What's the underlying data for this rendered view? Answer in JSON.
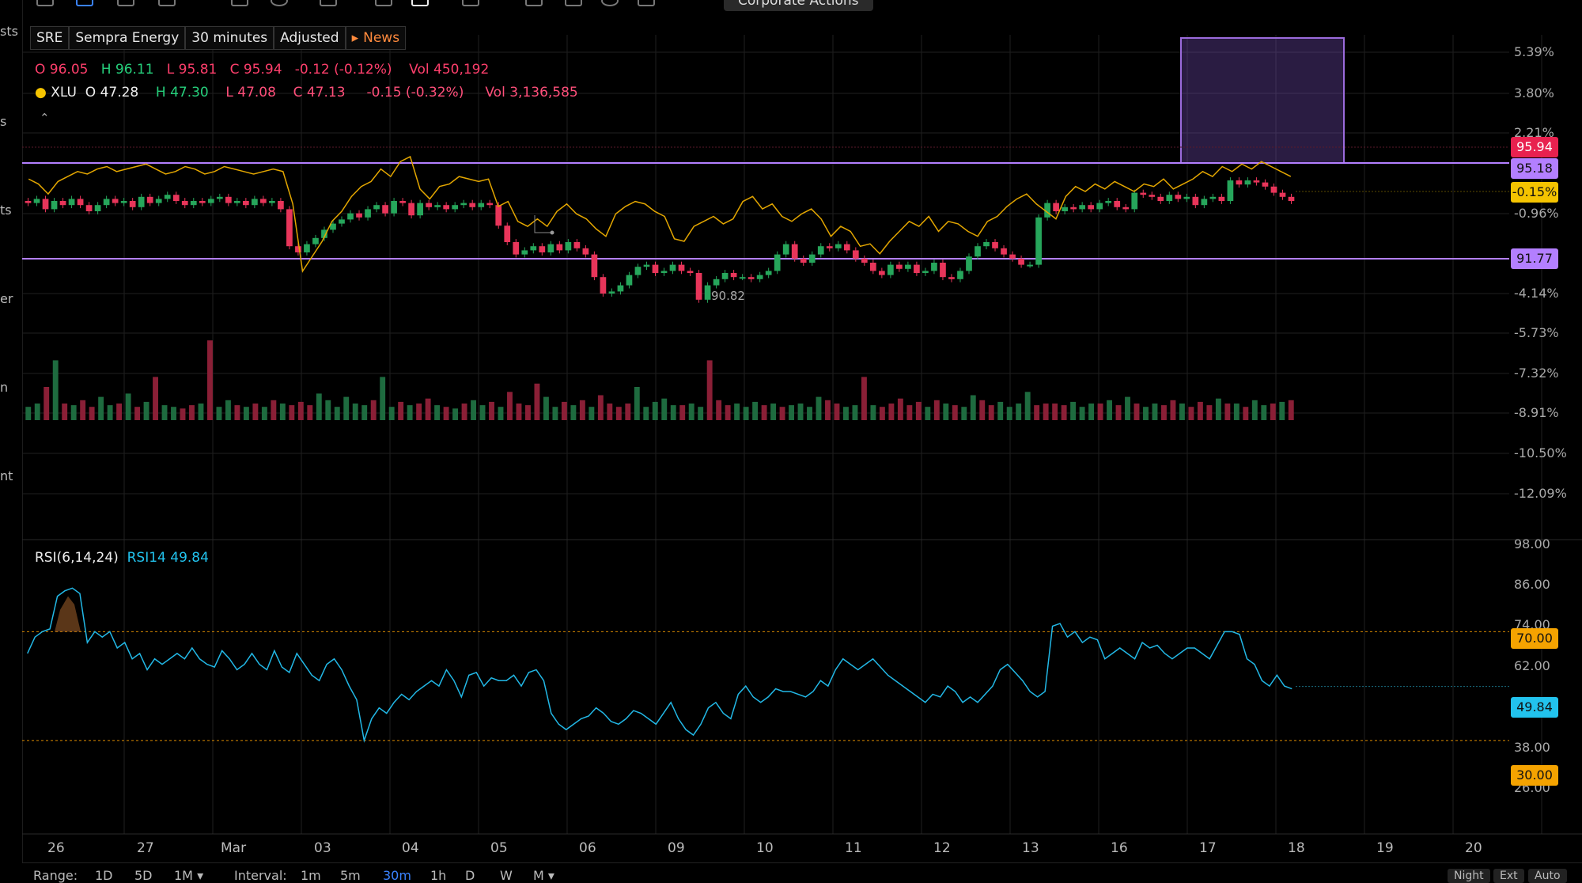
{
  "left_labels": [
    "sts",
    "s",
    "ts",
    "er",
    "n",
    "nt"
  ],
  "tooltip": "Corporate Actions",
  "symbol": {
    "ticker": "SRE",
    "name": "Sempra Energy",
    "interval": "30 minutes",
    "adjusted": "Adjusted",
    "news": "News"
  },
  "ohlc_main": {
    "o_label": "O",
    "o": "96.05",
    "h_label": "H",
    "h": "96.11",
    "l_label": "L",
    "l": "95.81",
    "c_label": "C",
    "c": "95.94",
    "chg": "-0.12 (-0.12%)",
    "vol_label": "Vol",
    "vol": "450,192"
  },
  "ohlc_cmp": {
    "ticker": "XLU",
    "o_label": "O",
    "o": "47.28",
    "h_label": "H",
    "h": "47.30",
    "l_label": "L",
    "l": "47.08",
    "c_label": "C",
    "c": "47.13",
    "chg": "-0.15 (-0.32%)",
    "vol_label": "Vol",
    "vol": "3,136,585"
  },
  "price_axis": [
    "5.39%",
    "3.80%",
    "2.21%",
    "-0.96%",
    "-4.14%",
    "-5.73%",
    "-7.32%",
    "-8.91%",
    "-10.50%",
    "-12.09%"
  ],
  "badges": {
    "last": "95.94",
    "line1": "95.18",
    "cmp": "-0.15%",
    "line2": "91.77"
  },
  "low_annotation": "90.82",
  "rsi": {
    "title": "RSI(6,14,24)",
    "series_label": "RSI14",
    "value": "49.84",
    "axis": [
      "98.00",
      "86.00",
      "74.00",
      "62.00",
      "38.00",
      "26.00"
    ],
    "ob": "70.00",
    "os": "30.00"
  },
  "x_axis": [
    "26",
    "27",
    "Mar",
    "03",
    "04",
    "05",
    "06",
    "09",
    "10",
    "11",
    "12",
    "13",
    "16",
    "17",
    "18",
    "19",
    "20"
  ],
  "bottom": {
    "range_label": "Range:",
    "ranges": [
      "1D",
      "5D",
      "1M ▾"
    ],
    "interval_label": "Interval:",
    "intervals": [
      "1m",
      "5m",
      "30m",
      "1h",
      "D",
      "W",
      "M ▾"
    ],
    "right_buttons": [
      "Night",
      "Ext",
      "Auto"
    ]
  },
  "colors": {
    "up": "#26a65b",
    "down": "#e8355a",
    "cmp_line": "#e3a600",
    "rsi_line": "#22b8e6",
    "hline": "#b37fff",
    "box": "#9b6bdc"
  },
  "chart_data": {
    "type": "candlestick",
    "price_series": [
      95.9,
      96.1,
      95.6,
      96.0,
      95.8,
      96.1,
      95.8,
      95.5,
      95.8,
      96.1,
      95.9,
      96.0,
      95.7,
      96.2,
      95.9,
      96.1,
      96.3,
      96.0,
      95.8,
      96.0,
      95.9,
      96.1,
      96.2,
      95.9,
      96.0,
      95.8,
      96.1,
      95.9,
      96.0,
      95.6,
      93.8,
      93.5,
      93.9,
      94.2,
      94.6,
      94.9,
      95.1,
      95.4,
      95.2,
      95.6,
      95.8,
      95.4,
      96.0,
      95.9,
      95.3,
      95.9,
      95.7,
      95.8,
      95.6,
      95.8,
      95.9,
      95.7,
      95.9,
      95.8,
      94.8,
      94.0,
      93.4,
      93.6,
      93.8,
      93.5,
      93.9,
      93.6,
      94.0,
      93.7,
      93.4,
      92.3,
      91.5,
      91.6,
      91.9,
      92.4,
      92.8,
      92.9,
      92.5,
      92.6,
      92.9,
      92.6,
      92.5,
      91.2,
      91.9,
      92.2,
      92.5,
      92.3,
      92.3,
      92.2,
      92.4,
      92.6,
      93.4,
      93.9,
      93.2,
      93.0,
      93.4,
      93.8,
      93.7,
      93.9,
      93.6,
      93.2,
      93.0,
      92.6,
      92.4,
      92.9,
      92.7,
      92.9,
      92.5,
      92.6,
      93.0,
      92.3,
      92.2,
      92.6,
      93.3,
      93.8,
      94.0,
      93.7,
      93.4,
      93.2,
      92.9,
      92.9,
      95.2,
      95.9,
      95.5,
      95.7,
      95.6,
      95.8,
      95.6,
      95.9,
      96.0,
      95.7,
      95.6,
      96.4,
      96.3,
      96.2,
      96.0,
      96.3,
      96.1,
      96.2,
      95.8,
      96.1,
      96.2,
      96.0,
      97.0,
      96.8,
      97.0,
      96.9,
      96.7,
      96.4,
      96.2,
      96.0
    ],
    "xlu_pct": [
      0.5,
      0.3,
      -0.1,
      0.4,
      0.6,
      0.8,
      0.7,
      0.9,
      1.0,
      0.8,
      0.9,
      1.0,
      1.1,
      0.9,
      0.7,
      0.8,
      1.0,
      0.9,
      0.7,
      0.8,
      1.0,
      0.9,
      0.8,
      0.7,
      0.8,
      0.9,
      0.8,
      -0.5,
      -3.2,
      -2.6,
      -2.0,
      -1.2,
      -0.8,
      -0.2,
      0.2,
      0.4,
      0.9,
      0.6,
      1.2,
      1.4,
      0.1,
      -0.3,
      0.2,
      0.3,
      0.6,
      0.5,
      0.4,
      0.5,
      -0.6,
      -0.4,
      -1.2,
      -1.4,
      -1.1,
      -1.4,
      -0.8,
      -0.5,
      -0.9,
      -1.1,
      -1.5,
      -1.8,
      -0.9,
      -0.6,
      -0.4,
      -0.5,
      -0.8,
      -1.0,
      -1.9,
      -2.0,
      -1.4,
      -1.2,
      -1.0,
      -1.3,
      -1.1,
      -0.4,
      -0.2,
      -0.7,
      -0.5,
      -1.0,
      -1.2,
      -0.9,
      -0.7,
      -1.1,
      -1.8,
      -1.4,
      -1.6,
      -2.2,
      -2.1,
      -2.5,
      -2.0,
      -1.6,
      -1.2,
      -1.4,
      -1.0,
      -1.6,
      -1.2,
      -1.3,
      -1.6,
      -1.8,
      -1.2,
      -1.0,
      -0.6,
      -0.3,
      -0.1,
      -0.5,
      -0.8,
      -1.1,
      -0.2,
      0.2,
      0.0,
      0.3,
      0.1,
      0.4,
      0.2,
      0.0,
      0.3,
      0.2,
      0.5,
      0.1,
      0.3,
      0.5,
      0.8,
      0.6,
      1.0,
      0.8,
      1.1,
      0.9,
      1.2,
      1.0,
      0.8,
      0.6
    ],
    "volume": [
      8,
      10,
      20,
      36,
      10,
      9,
      12,
      8,
      14,
      9,
      10,
      16,
      8,
      11,
      26,
      9,
      8,
      7,
      9,
      10,
      48,
      8,
      12,
      9,
      8,
      10,
      8,
      12,
      10,
      9,
      11,
      9,
      16,
      12,
      8,
      14,
      10,
      9,
      12,
      26,
      8,
      11,
      9,
      10,
      13,
      9,
      8,
      7,
      10,
      12,
      9,
      11,
      8,
      17,
      10,
      9,
      22,
      14,
      8,
      11,
      9,
      12,
      8,
      15,
      10,
      8,
      10,
      20,
      8,
      11,
      13,
      9,
      9,
      10,
      8,
      36,
      12,
      9,
      10,
      8,
      11,
      9,
      10,
      8,
      9,
      10,
      8,
      14,
      12,
      10,
      8,
      9,
      26,
      9,
      8,
      10,
      13,
      9,
      11,
      8,
      12,
      10,
      9,
      8,
      15,
      12,
      9,
      11,
      8,
      10,
      17,
      9,
      10,
      10,
      9,
      11,
      8,
      10,
      10,
      12,
      9,
      14,
      10,
      8,
      10,
      9,
      12,
      10,
      8,
      11,
      9,
      13,
      10,
      10,
      8,
      12,
      9,
      10,
      11,
      12
    ],
    "rsi14": [
      62,
      68,
      70,
      71,
      83,
      85,
      86,
      84,
      66,
      70,
      68,
      70,
      64,
      66,
      60,
      62,
      56,
      60,
      58,
      60,
      62,
      60,
      64,
      60,
      58,
      57,
      63,
      60,
      56,
      58,
      62,
      58,
      56,
      63,
      57,
      55,
      62,
      58,
      54,
      52,
      58,
      60,
      56,
      50,
      45,
      30,
      38,
      42,
      40,
      44,
      47,
      45,
      48,
      50,
      52,
      50,
      56,
      52,
      46,
      54,
      55,
      50,
      53,
      52,
      52,
      54,
      50,
      55,
      56,
      52,
      40,
      36,
      34,
      36,
      38,
      39,
      42,
      40,
      37,
      36,
      38,
      41,
      40,
      38,
      36,
      40,
      44,
      38,
      34,
      32,
      36,
      42,
      44,
      40,
      38,
      47,
      50,
      46,
      44,
      46,
      49,
      48,
      48,
      47,
      46,
      48,
      52,
      50,
      56,
      60,
      58,
      56,
      58,
      60,
      57,
      54,
      52,
      50,
      48,
      46,
      44,
      47,
      46,
      50,
      48,
      44,
      46,
      44,
      47,
      50,
      56,
      58,
      55,
      52,
      48,
      46,
      48,
      72,
      73,
      68,
      70,
      66,
      68,
      67,
      60,
      62,
      64,
      62,
      60,
      66,
      64,
      65,
      62,
      60,
      62,
      64,
      64,
      62,
      60,
      65,
      70,
      70,
      69,
      60,
      58,
      52,
      50,
      54,
      50,
      49
    ]
  }
}
